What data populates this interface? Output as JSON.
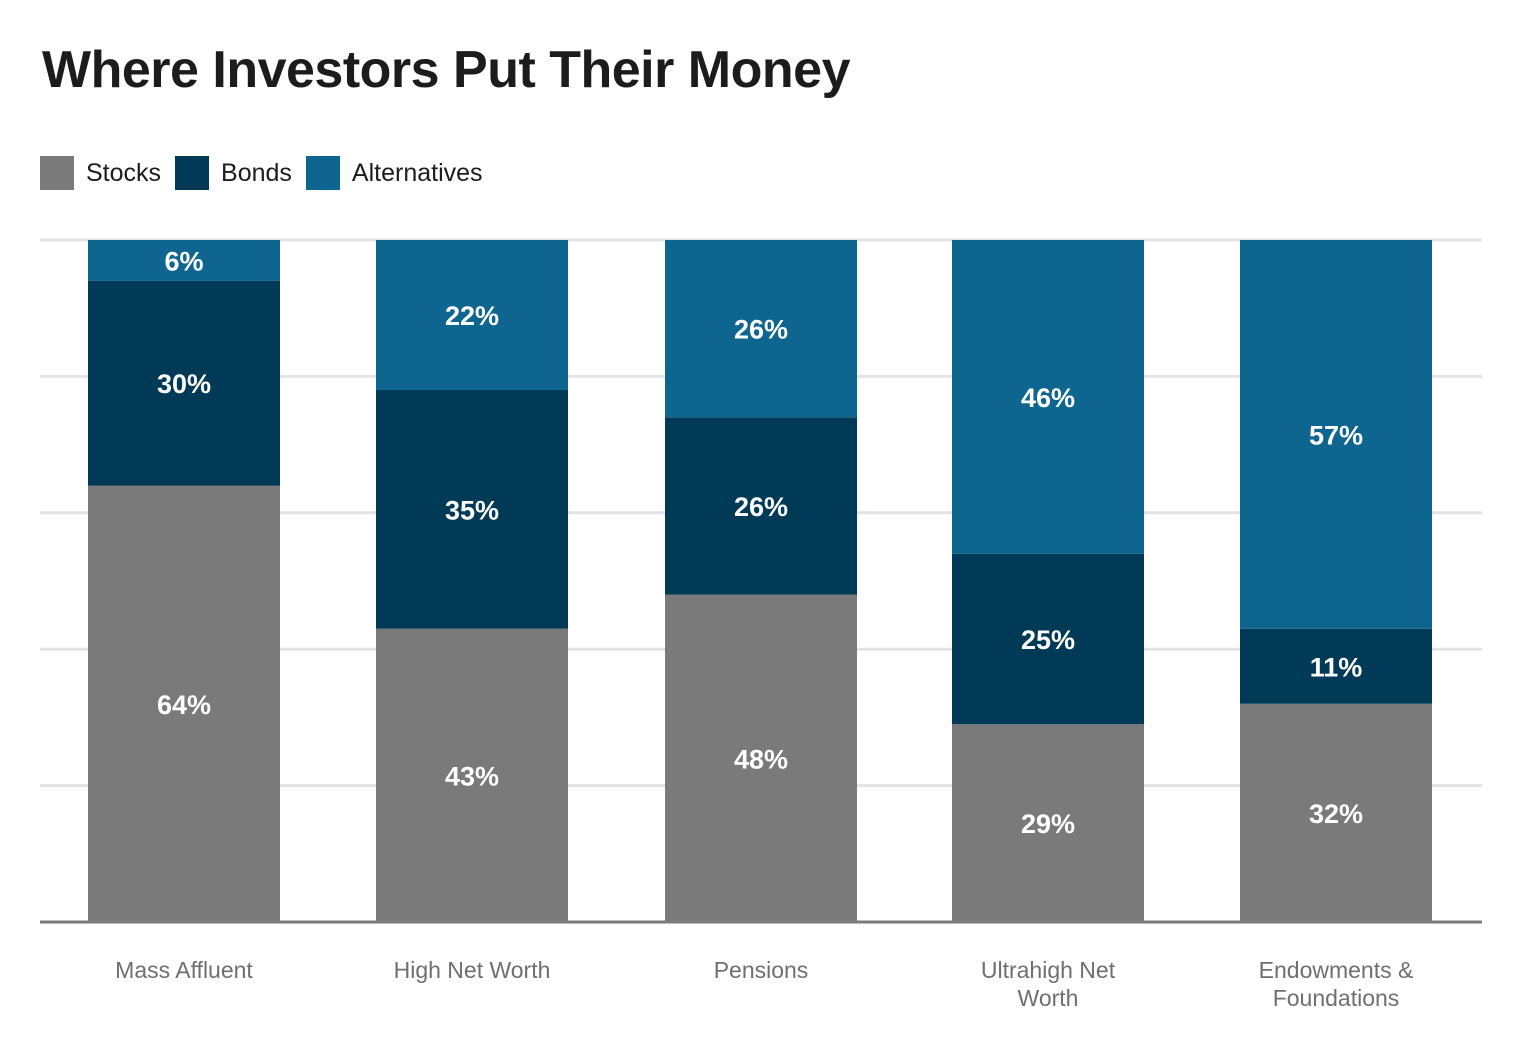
{
  "title": "Where Investors Put Their Money",
  "legend": [
    {
      "name": "Stocks",
      "color": "#7a7a7a"
    },
    {
      "name": "Bonds",
      "color": "#003a57"
    },
    {
      "name": "Alternatives",
      "color": "#0e6590"
    }
  ],
  "chart_data": {
    "type": "bar",
    "stacked": true,
    "title": "Where Investors Put Their Money",
    "xlabel": "",
    "ylabel": "",
    "ylim": [
      0,
      100
    ],
    "grid": true,
    "legend_position": "top-left",
    "categories": [
      [
        "Mass Affluent"
      ],
      [
        "High Net Worth"
      ],
      [
        "Pensions"
      ],
      [
        "Ultrahigh Net",
        "Worth"
      ],
      [
        "Endowments &",
        "Foundations"
      ]
    ],
    "series": [
      {
        "name": "Stocks",
        "color": "#7a7a7a",
        "values": [
          64,
          43,
          48,
          29,
          32
        ],
        "labels": [
          "64%",
          "43%",
          "48%",
          "29%",
          "32%"
        ]
      },
      {
        "name": "Bonds",
        "color": "#003a57",
        "values": [
          30,
          35,
          26,
          25,
          11
        ],
        "labels": [
          "30%",
          "35%",
          "26%",
          "25%",
          "11%"
        ]
      },
      {
        "name": "Alternatives",
        "color": "#0e6590",
        "values": [
          6,
          22,
          26,
          46,
          57
        ],
        "labels": [
          "6%",
          "22%",
          "26%",
          "46%",
          "57%"
        ]
      }
    ]
  }
}
